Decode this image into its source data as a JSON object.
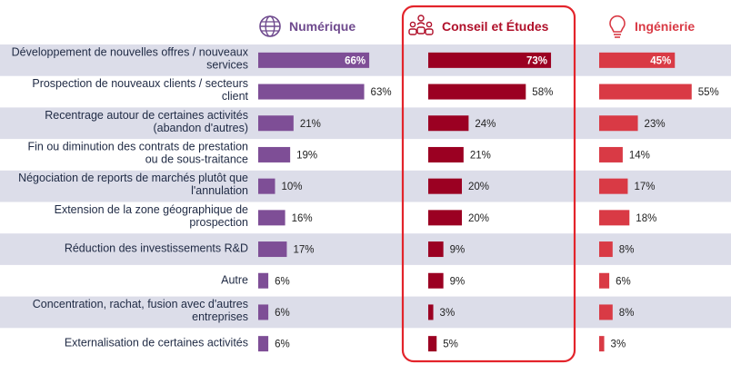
{
  "chart_data": {
    "type": "bar",
    "orientation": "horizontal",
    "value_suffix": "%",
    "xlim": [
      0,
      100
    ],
    "highlighted_series": "Conseil et Études",
    "categories": [
      [
        "Développement de nouvelles offres / nouveaux",
        "services"
      ],
      [
        "Prospection de nouveaux clients / secteurs",
        "client"
      ],
      [
        "Recentrage autour de certaines activités",
        "(abandon d'autres)"
      ],
      [
        "Fin ou diminution des contrats de prestation",
        "ou de sous-traitance"
      ],
      [
        "Négociation de reports de marchés plutôt que",
        "l'annulation"
      ],
      [
        "Extension de la zone géographique de",
        "prospection"
      ],
      [
        "Réduction des investissements R&D"
      ],
      [
        "Autre"
      ],
      [
        "Concentration, rachat, fusion avec d'autres",
        "entreprises"
      ],
      [
        "Externalisation de certaines activités"
      ]
    ],
    "series": [
      {
        "name": "Numérique",
        "icon": "globe-icon",
        "color": "#7e4e96",
        "header_color": "#6f4a8e",
        "values": [
          66,
          63,
          21,
          19,
          10,
          16,
          17,
          6,
          6,
          6
        ]
      },
      {
        "name": "Conseil et Études",
        "icon": "people-network-icon",
        "color": "#9b0022",
        "header_color": "#b0102a",
        "values": [
          73,
          58,
          24,
          21,
          20,
          20,
          9,
          9,
          3,
          5
        ]
      },
      {
        "name": "Ingénierie",
        "icon": "lightbulb-icon",
        "color": "#d93a45",
        "header_color": "#d93a45",
        "values": [
          45,
          55,
          23,
          14,
          17,
          18,
          8,
          6,
          8,
          3
        ]
      }
    ],
    "band_color": "#dcdde9",
    "highlight_box_color": "#e3242b"
  }
}
